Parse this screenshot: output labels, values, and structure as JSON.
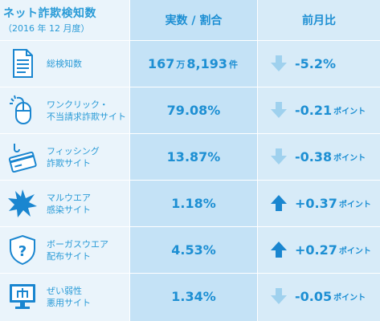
{
  "header": {
    "title": "ネット詐欺検知数",
    "subtitle": "（2016 年 12 月度）",
    "col_value": "実数 / 割合",
    "col_change": "前月比"
  },
  "colors": {
    "accent": "#1d8fd3",
    "arrow_up": "#1a86d0",
    "arrow_down": "#9fd1ee"
  },
  "rows": [
    {
      "icon": "document-icon",
      "label_lines": [
        "総検知数"
      ],
      "value_parts": [
        "167",
        "万",
        "8,193",
        "件"
      ],
      "change": "-5.2%",
      "change_unit": "",
      "direction": "down"
    },
    {
      "icon": "mouse-click-icon",
      "label_lines": [
        "ワンクリック・",
        "不当請求詐欺サイト"
      ],
      "value": "79.08%",
      "change": "-0.21",
      "change_unit": "ポイント",
      "direction": "down"
    },
    {
      "icon": "phishing-card-icon",
      "label_lines": [
        "フィッシング",
        "詐欺サイト"
      ],
      "value": "13.87%",
      "change": "-0.38",
      "change_unit": "ポイント",
      "direction": "down"
    },
    {
      "icon": "malware-burst-icon",
      "label_lines": [
        "マルウエア",
        "感染サイト"
      ],
      "value": "1.18%",
      "change": "+0.37",
      "change_unit": "ポイント",
      "direction": "up"
    },
    {
      "icon": "shield-question-icon",
      "label_lines": [
        "ボーガスウエア",
        "配布サイト"
      ],
      "value": "4.53%",
      "change": "+0.27",
      "change_unit": "ポイント",
      "direction": "up"
    },
    {
      "icon": "vulnerable-monitor-icon",
      "label_lines": [
        "ぜい弱性",
        "悪用サイト"
      ],
      "value": "1.34%",
      "change": "-0.05",
      "change_unit": "ポイント",
      "direction": "down"
    }
  ]
}
